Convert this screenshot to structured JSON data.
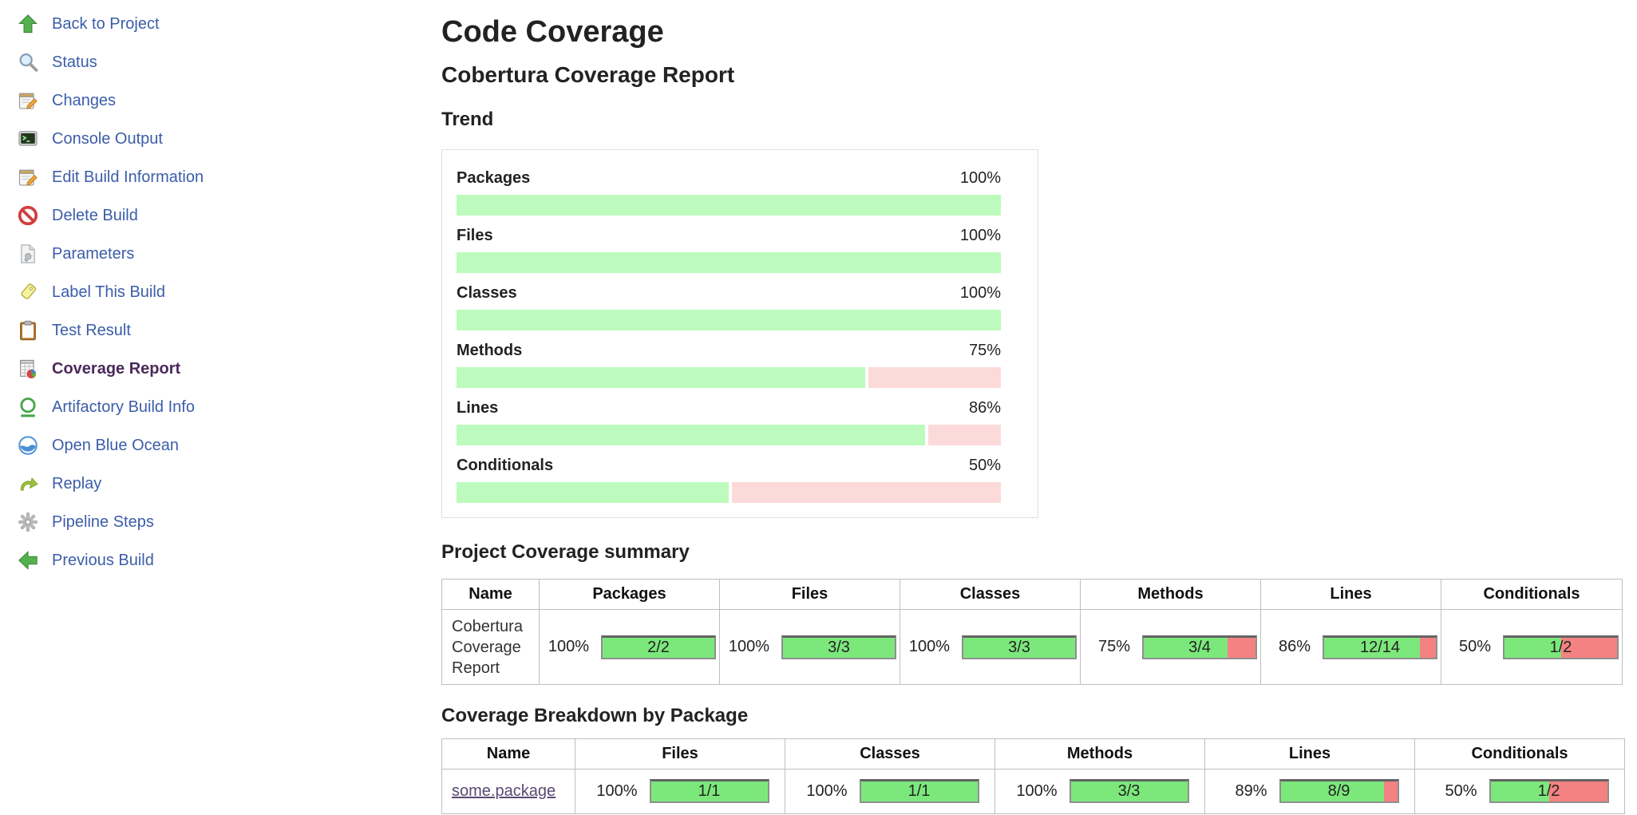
{
  "sidebar": {
    "items": [
      {
        "label": "Back to Project",
        "icon": "up-arrow"
      },
      {
        "label": "Status",
        "icon": "magnifier"
      },
      {
        "label": "Changes",
        "icon": "notepad-pencil"
      },
      {
        "label": "Console Output",
        "icon": "terminal"
      },
      {
        "label": "Edit Build Information",
        "icon": "notepad-pencil"
      },
      {
        "label": "Delete Build",
        "icon": "prohibition"
      },
      {
        "label": "Parameters",
        "icon": "document-wrench"
      },
      {
        "label": "Label This Build",
        "icon": "tag"
      },
      {
        "label": "Test Result",
        "icon": "clipboard"
      },
      {
        "label": "Coverage Report",
        "icon": "spreadsheet-pie",
        "active": true
      },
      {
        "label": "Artifactory Build Info",
        "icon": "green-circle"
      },
      {
        "label": "Open Blue Ocean",
        "icon": "blue-ocean"
      },
      {
        "label": "Replay",
        "icon": "redo-arrow"
      },
      {
        "label": "Pipeline Steps",
        "icon": "gear"
      },
      {
        "label": "Previous Build",
        "icon": "left-arrow"
      }
    ]
  },
  "main": {
    "title": "Code Coverage",
    "subtitle": "Cobertura Coverage Report",
    "trend": {
      "heading": "Trend",
      "rows": [
        {
          "label": "Packages",
          "percent": 100,
          "percent_label": "100%"
        },
        {
          "label": "Files",
          "percent": 100,
          "percent_label": "100%"
        },
        {
          "label": "Classes",
          "percent": 100,
          "percent_label": "100%"
        },
        {
          "label": "Methods",
          "percent": 75,
          "percent_label": "75%"
        },
        {
          "label": "Lines",
          "percent": 86,
          "percent_label": "86%"
        },
        {
          "label": "Conditionals",
          "percent": 50,
          "percent_label": "50%"
        }
      ]
    },
    "summary": {
      "heading": "Project Coverage summary",
      "columns": [
        "Name",
        "Packages",
        "Files",
        "Classes",
        "Methods",
        "Lines",
        "Conditionals"
      ],
      "row": {
        "name": "Cobertura Coverage Report",
        "metrics": [
          {
            "label": "Packages",
            "percent": 100,
            "percent_label": "100%",
            "ratio": "2/2"
          },
          {
            "label": "Files",
            "percent": 100,
            "percent_label": "100%",
            "ratio": "3/3"
          },
          {
            "label": "Classes",
            "percent": 100,
            "percent_label": "100%",
            "ratio": "3/3"
          },
          {
            "label": "Methods",
            "percent": 75,
            "percent_label": "75%",
            "ratio": "3/4"
          },
          {
            "label": "Lines",
            "percent": 86,
            "percent_label": "86%",
            "ratio": "12/14"
          },
          {
            "label": "Conditionals",
            "percent": 50,
            "percent_label": "50%",
            "ratio": "1/2"
          }
        ]
      }
    },
    "breakdown": {
      "heading": "Coverage Breakdown by Package",
      "columns": [
        "Name",
        "Files",
        "Classes",
        "Methods",
        "Lines",
        "Conditionals"
      ],
      "row": {
        "name": "some.package",
        "metrics": [
          {
            "label": "Files",
            "percent": 100,
            "percent_label": "100%",
            "ratio": "1/1"
          },
          {
            "label": "Classes",
            "percent": 100,
            "percent_label": "100%",
            "ratio": "1/1"
          },
          {
            "label": "Methods",
            "percent": 100,
            "percent_label": "100%",
            "ratio": "3/3"
          },
          {
            "label": "Lines",
            "percent": 89,
            "percent_label": "89%",
            "ratio": "8/9"
          },
          {
            "label": "Conditionals",
            "percent": 50,
            "percent_label": "50%",
            "ratio": "1/2"
          }
        ]
      }
    }
  },
  "colors": {
    "table_bar_green": "#7ce87c",
    "table_bar_red": "#f58282",
    "trend_bar_green": "#bdfabd",
    "trend_bar_pink": "#fcdada",
    "sidebar_link_blue": "#3b5da9",
    "active_item_purple": "#4a2a5a",
    "visited_link_purple": "#584a72"
  }
}
